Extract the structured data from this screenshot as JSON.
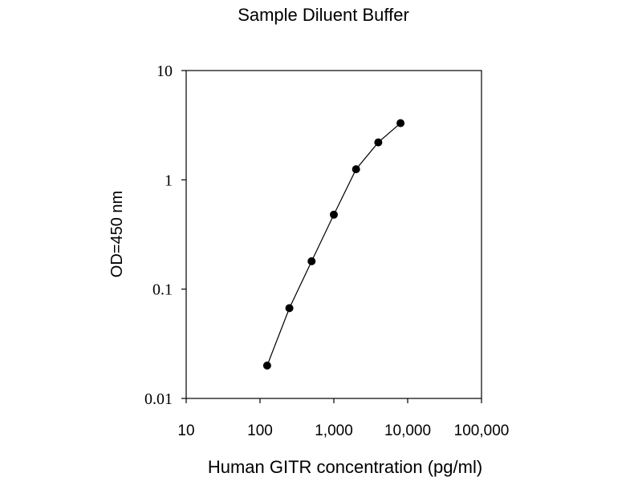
{
  "chart_data": {
    "type": "line",
    "title": "Sample Diluent Buffer",
    "xlabel": "Human GITR concentration (pg/ml)",
    "ylabel": "OD=450 nm",
    "x_scale": "log",
    "y_scale": "log",
    "xlim": [
      10,
      100000
    ],
    "ylim": [
      0.01,
      10
    ],
    "x_ticks": [
      10,
      100,
      1000,
      10000,
      100000
    ],
    "x_tick_labels": [
      "10",
      "100",
      "1,000",
      "10,000",
      "100,000"
    ],
    "y_ticks": [
      10,
      1,
      0.1,
      0.01
    ],
    "y_tick_labels": [
      "10",
      "1",
      "0.1",
      "0.01"
    ],
    "grid": false,
    "legend": "none",
    "markers": "filled-circle",
    "color": "#000000",
    "series": [
      {
        "x": [
          125,
          250,
          500,
          1000,
          2000,
          4000,
          8000
        ],
        "y": [
          0.02,
          0.067,
          0.18,
          0.48,
          1.25,
          2.2,
          3.3
        ]
      }
    ]
  }
}
